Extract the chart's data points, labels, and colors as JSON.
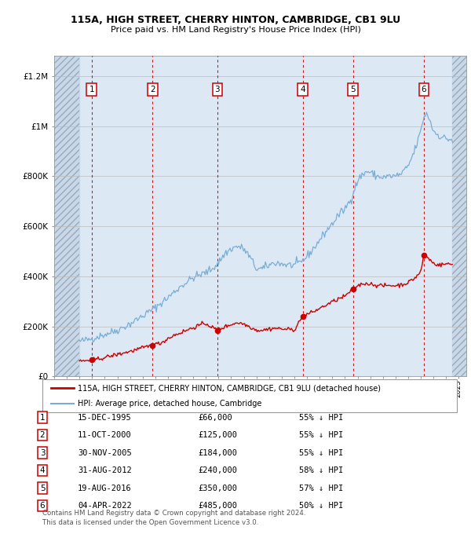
{
  "title1": "115A, HIGH STREET, CHERRY HINTON, CAMBRIDGE, CB1 9LU",
  "title2": "Price paid vs. HM Land Registry's House Price Index (HPI)",
  "y_ticks": [
    0,
    200000,
    400000,
    600000,
    800000,
    1000000,
    1200000
  ],
  "y_tick_labels": [
    "£0",
    "£200K",
    "£400K",
    "£600K",
    "£800K",
    "£1M",
    "£1.2M"
  ],
  "x_start_year": 1993,
  "x_end_year": 2025,
  "sales": [
    {
      "num": 1,
      "date": "15-DEC-1995",
      "year": 1995.96,
      "price": 66000,
      "pct": "55%"
    },
    {
      "num": 2,
      "date": "11-OCT-2000",
      "year": 2000.78,
      "price": 125000,
      "pct": "55%"
    },
    {
      "num": 3,
      "date": "30-NOV-2005",
      "year": 2005.91,
      "price": 184000,
      "pct": "55%"
    },
    {
      "num": 4,
      "date": "31-AUG-2012",
      "year": 2012.66,
      "price": 240000,
      "pct": "58%"
    },
    {
      "num": 5,
      "date": "19-AUG-2016",
      "year": 2016.63,
      "price": 350000,
      "pct": "57%"
    },
    {
      "num": 6,
      "date": "04-APR-2022",
      "year": 2022.25,
      "price": 485000,
      "pct": "50%"
    }
  ],
  "legend_label_red": "115A, HIGH STREET, CHERRY HINTON, CAMBRIDGE, CB1 9LU (detached house)",
  "legend_label_blue": "HPI: Average price, detached house, Cambridge",
  "footnote1": "Contains HM Land Registry data © Crown copyright and database right 2024.",
  "footnote2": "This data is licensed under the Open Government Licence v3.0.",
  "bg_color": "#dce9f5",
  "hatch_color": "#c8d8e8",
  "grid_color": "#bbbbbb",
  "red_color": "#cc0000",
  "blue_color": "#7aadd4",
  "hatch_edge_color": "#99aabb"
}
